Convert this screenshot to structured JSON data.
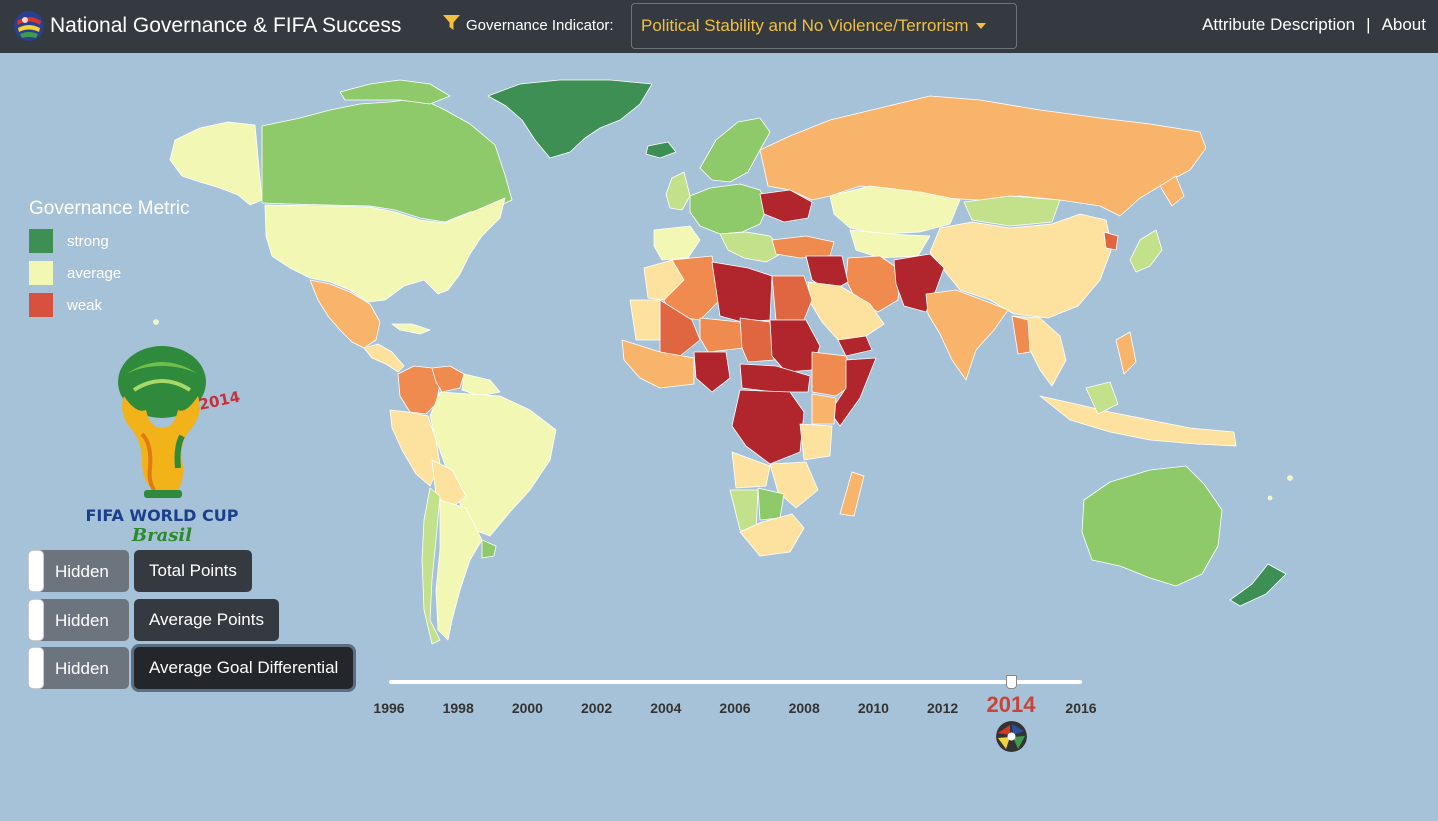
{
  "header": {
    "title": "National Governance & FIFA Success",
    "filter_label": "Governance Indicator:",
    "selected_indicator": "Political Stability and No Violence/Terrorism",
    "links": [
      "Attribute Description",
      "About"
    ],
    "separator": "|"
  },
  "legend": {
    "title": "Governance Metric",
    "items": [
      {
        "label": "strong",
        "color": "#3d8f54"
      },
      {
        "label": "average",
        "color": "#f2f7b4"
      },
      {
        "label": "weak",
        "color": "#d8503e"
      }
    ]
  },
  "palette": {
    "ocean": "#a6c2d8",
    "strong": "#3d8f54",
    "good": "#8fca6a",
    "fair": "#c3e08a",
    "average": "#f2f7b4",
    "moderate": "#fde29f",
    "low": "#f9b46b",
    "poor": "#f08b50",
    "weak": "#e06642",
    "very_weak": "#b0262c"
  },
  "logo": {
    "line1": "FIFA WORLD CUP",
    "line2": "Brasil",
    "year": "2014"
  },
  "toggles": [
    {
      "state": "Hidden",
      "label": "Total Points",
      "active": false
    },
    {
      "state": "Hidden",
      "label": "Average Points",
      "active": false
    },
    {
      "state": "Hidden",
      "label": "Average Goal Differential",
      "active": true
    }
  ],
  "timeline": {
    "ticks": [
      "1996",
      "1998",
      "2000",
      "2002",
      "2004",
      "2006",
      "2008",
      "2010",
      "2012",
      "2014",
      "2016"
    ],
    "hidden_tick": "2014",
    "min": 1996,
    "max": 2016,
    "current_year": "2014"
  }
}
